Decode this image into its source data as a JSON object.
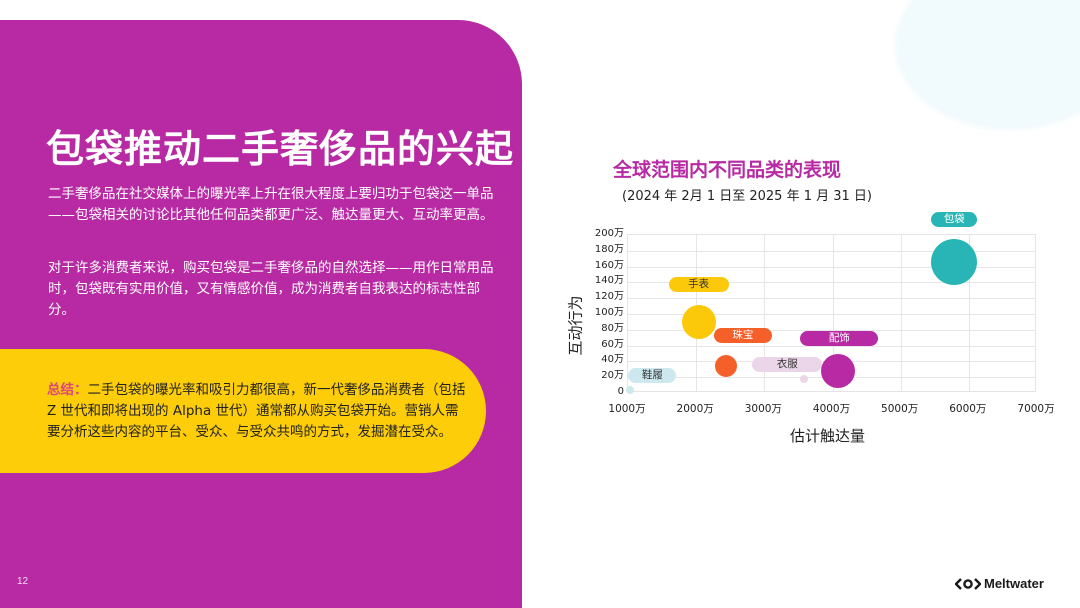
{
  "slide": {
    "title": "包袋推动二手奢侈品的兴起",
    "paragraphs": [
      "二手奢侈品在社交媒体上的曝光率上升在很大程度上要归功于包袋这一单品——包袋相关的讨论比其他任何品类都更广泛、触达量更大、互动率更高。",
      "对于许多消费者来说，购买包袋是二手奢侈品的自然选择——用作日常用品时，包袋既有实用价值，又有情感价值，成为消费者自我表达的标志性部分。"
    ],
    "summary": {
      "label": "总结：",
      "text": "二手包袋的曝光率和吸引力都很高，新一代奢侈品消费者（包括 Z 世代和即将出现的 Alpha 世代）通常都从购买包袋开始。营销人需要分析这些内容的平台、受众、与受众共鸣的方式，发掘潜在受众。"
    },
    "page_number": "12",
    "brand": "Meltwater",
    "brand_icon": "meltwater-logo-icon"
  },
  "colors": {
    "panel_purple": "#b72aa3",
    "summary_yellow": "#fccd08",
    "summary_label": "#e0457f"
  },
  "chart_data": {
    "type": "scatter",
    "subtype": "bubble",
    "title": "全球范围内不同品类的表现",
    "subtitle": "(2024 年 2月 1 日至 2025 年 1 月 31 日)",
    "xlabel": "估计触达量",
    "ylabel": "互动行为",
    "xlim": [
      10000000,
      70000000
    ],
    "ylim": [
      0,
      2000000
    ],
    "x_ticks": [
      "1000万",
      "2000万",
      "3000万",
      "4000万",
      "5000万",
      "6000万",
      "7000万"
    ],
    "y_ticks": [
      "0",
      "20万",
      "40万",
      "60万",
      "80万",
      "100万",
      "120万",
      "140万",
      "160万",
      "180万",
      "200万"
    ],
    "grid": true,
    "legend": "none (inline pill labels)",
    "series": [
      {
        "name": "鞋履",
        "x": 10500000,
        "y": 30000,
        "size": "very small",
        "color": "#cde9ef"
      },
      {
        "name": "手表",
        "x": 20500000,
        "y": 880000,
        "size": "medium",
        "color": "#fcc80a"
      },
      {
        "name": "珠宝",
        "x": 24500000,
        "y": 330000,
        "size": "small",
        "color": "#f5602a"
      },
      {
        "name": "衣服",
        "x": 36000000,
        "y": 170000,
        "size": "very small",
        "color": "#ead6e8"
      },
      {
        "name": "配饰",
        "x": 41000000,
        "y": 260000,
        "size": "medium",
        "color": "#b72aa3"
      },
      {
        "name": "包袋",
        "x": 58000000,
        "y": 1650000,
        "size": "large",
        "color": "#29b5b5"
      }
    ]
  }
}
